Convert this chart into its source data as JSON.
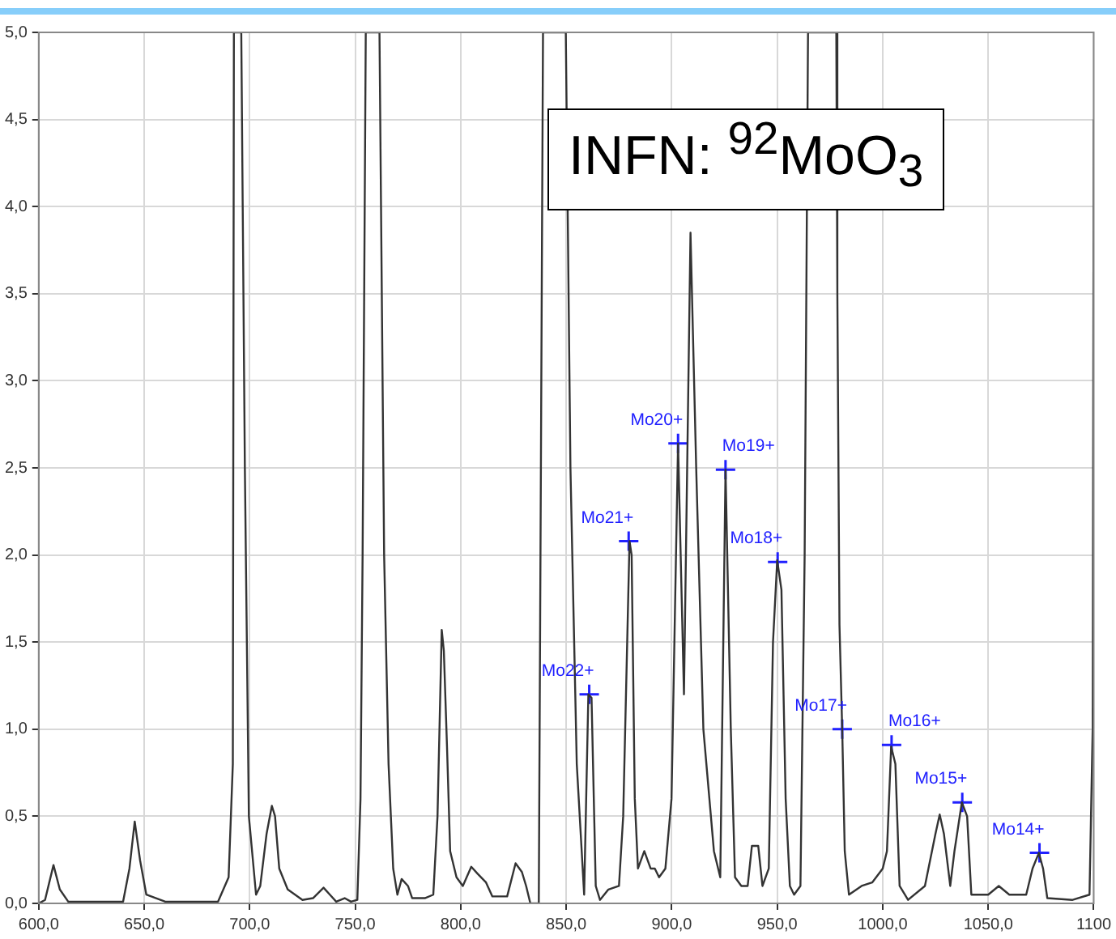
{
  "chart_data": {
    "type": "line",
    "title": "INFN: $^{92}$MoO$_{3}$",
    "xlim": [
      600,
      1100
    ],
    "ylim": [
      0,
      5
    ],
    "xticks": [
      {
        "value": 600,
        "label": "600,0"
      },
      {
        "value": 650,
        "label": "650,0"
      },
      {
        "value": 700,
        "label": "700,0"
      },
      {
        "value": 750,
        "label": "750,0"
      },
      {
        "value": 800,
        "label": "800,0"
      },
      {
        "value": 850,
        "label": "850,0"
      },
      {
        "value": 900,
        "label": "900,0"
      },
      {
        "value": 950,
        "label": "950,0"
      },
      {
        "value": 1000,
        "label": "1000,0"
      },
      {
        "value": 1050,
        "label": "1050,0"
      },
      {
        "value": 1100,
        "label": "1100"
      }
    ],
    "yticks": [
      {
        "value": 0,
        "label": "0,0"
      },
      {
        "value": 0.5,
        "label": "0,5"
      },
      {
        "value": 1,
        "label": "1,0"
      },
      {
        "value": 1.5,
        "label": "1,5"
      },
      {
        "value": 2,
        "label": "2,0"
      },
      {
        "value": 2.5,
        "label": "2,5"
      },
      {
        "value": 3,
        "label": "3,0"
      },
      {
        "value": 3.5,
        "label": "3,5"
      },
      {
        "value": 4,
        "label": "4,0"
      },
      {
        "value": 4.5,
        "label": "4,5"
      },
      {
        "value": 5,
        "label": "5,0"
      }
    ],
    "grid": true,
    "legend": false,
    "series": [
      {
        "color": "#333333",
        "marker": "none",
        "x": [
          600,
          603,
          607,
          610,
          614,
          640,
          643,
          645.5,
          648,
          651,
          660,
          685,
          690,
          692,
          692.5,
          696,
          697.7,
          699.6,
          703,
          705,
          708,
          710.5,
          712,
          714,
          718,
          725,
          730,
          735,
          738,
          741,
          745,
          748,
          751,
          752.5,
          753.5,
          755,
          761.5,
          763.7,
          765.8,
          768,
          770,
          772,
          775,
          777,
          783,
          787,
          789,
          791,
          792,
          793.5,
          795,
          798,
          801,
          805,
          808,
          812,
          815,
          822,
          826,
          829,
          831,
          833,
          837,
          839,
          849.8,
          852,
          855,
          858.5,
          860.5,
          862,
          864,
          866,
          870,
          875,
          877,
          880,
          881,
          882.5,
          884,
          887,
          890,
          892,
          894,
          897,
          899.9,
          903,
          905.8,
          908.9,
          911.6,
          915,
          920,
          923,
          925.5,
          928,
          930,
          933,
          936,
          938,
          941,
          943,
          946,
          948,
          950,
          952,
          954,
          956,
          958,
          961,
          963,
          964.6,
          978,
          978.5,
          979.5,
          980.8,
          982,
          984,
          990,
          995,
          1000,
          1002,
          1004,
          1006,
          1008,
          1012,
          1020,
          1025,
          1027,
          1029,
          1032,
          1034,
          1037.5,
          1040,
          1042,
          1050,
          1055,
          1060,
          1068,
          1071,
          1074,
          1076,
          1078,
          1090,
          1098,
          1099.5,
          1100
        ],
        "values": [
          0,
          0.02,
          0.22,
          0.08,
          0.01,
          0.01,
          0.2,
          0.47,
          0.25,
          0.05,
          0.01,
          0.01,
          0.15,
          0.8,
          5,
          5,
          2.5,
          0.5,
          0.05,
          0.1,
          0.4,
          0.56,
          0.5,
          0.2,
          0.08,
          0.02,
          0.03,
          0.09,
          0.05,
          0.01,
          0.03,
          0.01,
          0.02,
          0.6,
          2,
          5,
          5,
          2,
          0.8,
          0.2,
          0.05,
          0.14,
          0.1,
          0.03,
          0.03,
          0.05,
          0.5,
          1.57,
          1.45,
          0.9,
          0.3,
          0.15,
          0.1,
          0.21,
          0.17,
          0.12,
          0.04,
          0.04,
          0.23,
          0.18,
          0.1,
          0,
          0,
          5,
          5,
          2.5,
          0.8,
          0.05,
          1.2,
          1.18,
          0.1,
          0.02,
          0.08,
          0.1,
          0.5,
          2.08,
          2,
          0.6,
          0.2,
          0.3,
          0.2,
          0.2,
          0.15,
          0.2,
          0.6,
          2.64,
          1.2,
          3.85,
          2.5,
          1,
          0.3,
          0.15,
          2.49,
          1,
          0.15,
          0.1,
          0.1,
          0.33,
          0.33,
          0.1,
          0.2,
          1.5,
          1.97,
          1.8,
          0.6,
          0.1,
          0.05,
          0.1,
          2,
          5,
          5,
          3.5,
          1.6,
          1,
          0.3,
          0.05,
          0.1,
          0.12,
          0.2,
          0.3,
          0.9,
          0.8,
          0.1,
          0.02,
          0.1,
          0.4,
          0.51,
          0.4,
          0.1,
          0.3,
          0.58,
          0.5,
          0.05,
          0.05,
          0.1,
          0.05,
          0.05,
          0.2,
          0.29,
          0.2,
          0.03,
          0.02,
          0.05,
          1,
          4.5
        ]
      },
      {
        "type": "scatter",
        "color": "#2020ff",
        "marker": "cross",
        "x": [
          860.9,
          879.6,
          903,
          925.5,
          950.2,
          980.8,
          1004.2,
          1037.7,
          1074.3
        ],
        "values": [
          1.2,
          2.08,
          2.64,
          2.49,
          1.96,
          1,
          0.91,
          0.58,
          0.29
        ]
      }
    ],
    "annotations": [
      {
        "text": "Mo22+",
        "x": 860.9,
        "y": 1.2
      },
      {
        "text": "Mo21+",
        "x": 879.6,
        "y": 2.08
      },
      {
        "text": "Mo20+",
        "x": 903,
        "y": 2.64
      },
      {
        "text": "Mo19+",
        "x": 925.5,
        "y": 2.49
      },
      {
        "text": "Mo18+",
        "x": 950.2,
        "y": 1.96
      },
      {
        "text": "Mo17+",
        "x": 980.8,
        "y": 1
      },
      {
        "text": "Mo16+",
        "x": 1004.2,
        "y": 0.91
      },
      {
        "text": "Mo15+",
        "x": 1037.7,
        "y": 0.58
      },
      {
        "text": "Mo14+",
        "x": 1074.3,
        "y": 0.29
      }
    ]
  }
}
